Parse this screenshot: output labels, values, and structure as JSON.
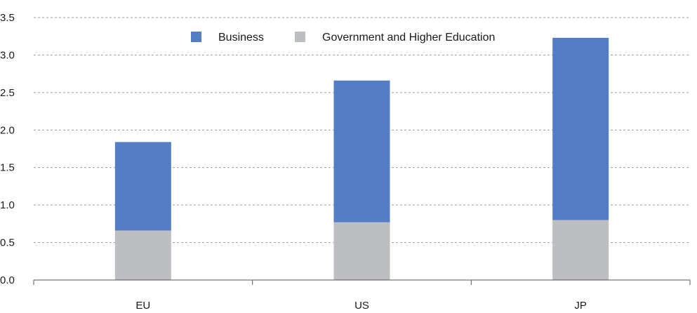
{
  "chart_data": {
    "type": "bar",
    "stacked": true,
    "categories": [
      "EU",
      "US",
      "JP"
    ],
    "series": [
      {
        "name": "Government and Higher Education",
        "values": [
          0.66,
          0.77,
          0.8
        ],
        "color": "#bdbec2"
      },
      {
        "name": "Business",
        "values": [
          1.18,
          1.89,
          2.43
        ],
        "color": "#537dc4"
      }
    ],
    "legend_order": [
      "Business",
      "Government and Higher Education"
    ],
    "legend_position": "top-center",
    "ylim": [
      0,
      3.5
    ],
    "yticks": [
      "0.0",
      "0.5",
      "1.0",
      "1.5",
      "2.0",
      "2.5",
      "3.0",
      "3.5"
    ],
    "ytick_values": [
      0,
      0.5,
      1.0,
      1.5,
      2.0,
      2.5,
      3.0,
      3.5
    ],
    "grid": "horizontal-dashed",
    "gridline_color": "#9a9a9a",
    "axis_color": "#555555"
  }
}
